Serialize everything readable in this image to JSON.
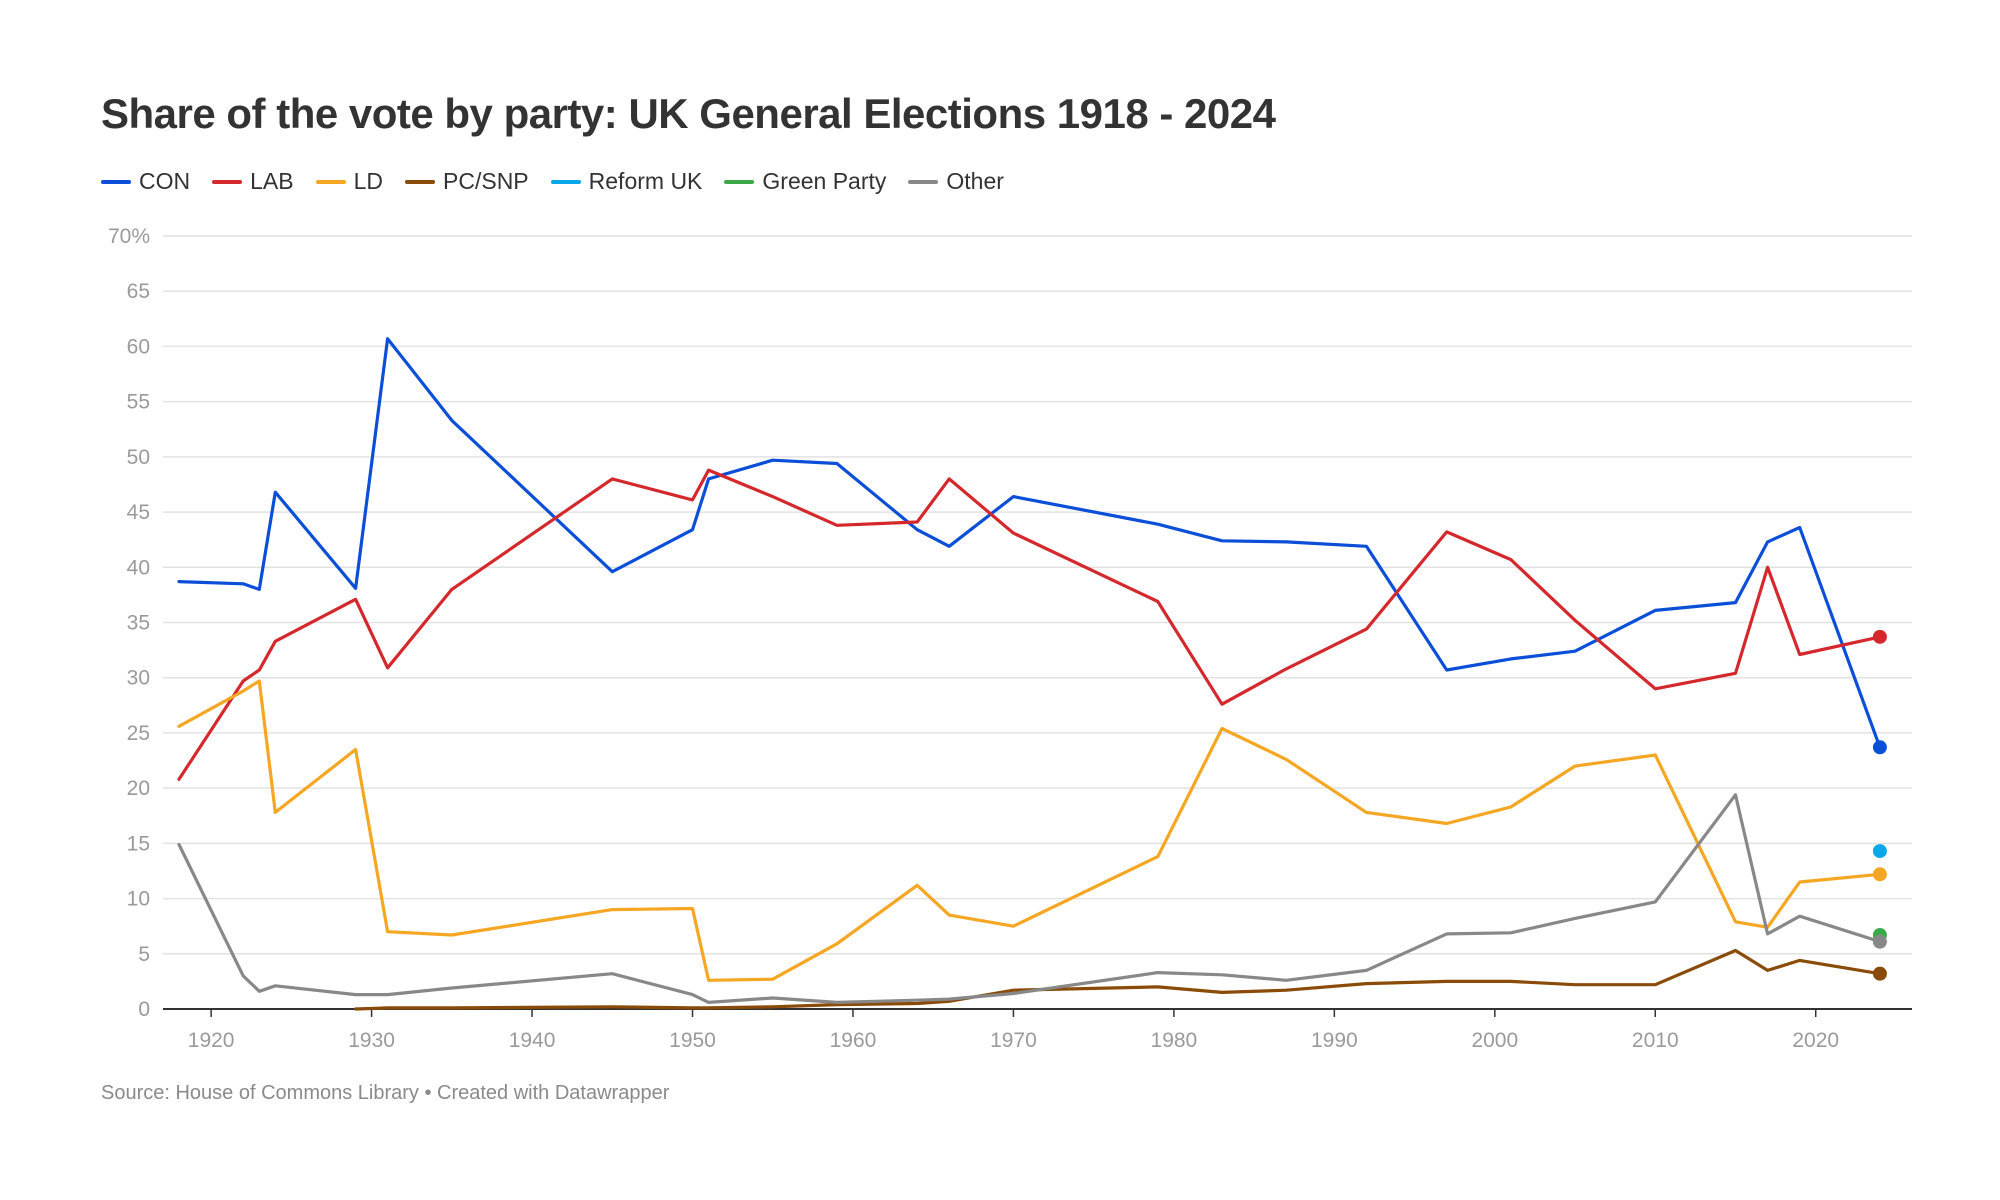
{
  "title": "Share of the vote by party: UK General Elections 1918 - 2024",
  "source": "Source: House of Commons Library • Created with Datawrapper",
  "chart_data": {
    "type": "line",
    "title": "Share of the vote by party: UK General Elections 1918 - 2024",
    "xlabel": "",
    "ylabel": "",
    "xlim": [
      1917,
      2026
    ],
    "ylim": [
      0,
      70
    ],
    "grid": true,
    "legend_position": "top-left",
    "x_ticks": [
      "1920",
      "1930",
      "1940",
      "1950",
      "1960",
      "1970",
      "1980",
      "1990",
      "2000",
      "2010",
      "2020"
    ],
    "x_tick_values": [
      1920,
      1930,
      1940,
      1950,
      1960,
      1970,
      1980,
      1990,
      2000,
      2010,
      2020
    ],
    "y_ticks": [
      "0",
      "5",
      "10",
      "15",
      "20",
      "25",
      "30",
      "35",
      "40",
      "45",
      "50",
      "55",
      "60",
      "65",
      "70%"
    ],
    "y_tick_values": [
      0,
      5,
      10,
      15,
      20,
      25,
      30,
      35,
      40,
      45,
      50,
      55,
      60,
      65,
      70
    ],
    "x": [
      1918,
      1922,
      1923,
      1924,
      1929,
      1931,
      1935,
      1945,
      1950,
      1951,
      1955,
      1959,
      1964,
      1966,
      1970,
      1979,
      1983,
      1987,
      1992,
      1997,
      2001,
      2005,
      2010,
      2015,
      2017,
      2019,
      2024
    ],
    "series": [
      {
        "name": "CON",
        "color": "#0b4fd8",
        "values": [
          38.7,
          38.5,
          38.0,
          46.8,
          38.1,
          60.7,
          53.3,
          39.6,
          43.4,
          48.0,
          49.7,
          49.4,
          43.4,
          41.9,
          46.4,
          43.9,
          42.4,
          42.3,
          41.9,
          30.7,
          31.7,
          32.4,
          36.1,
          36.8,
          42.3,
          43.6,
          23.7
        ]
      },
      {
        "name": "LAB",
        "color": "#d4282c",
        "values": [
          20.8,
          29.7,
          30.7,
          33.3,
          37.1,
          30.9,
          38.0,
          48.0,
          46.1,
          48.8,
          46.4,
          43.8,
          44.1,
          48.0,
          43.1,
          36.9,
          27.6,
          30.8,
          34.4,
          43.2,
          40.7,
          35.2,
          29.0,
          30.4,
          40.0,
          32.1,
          33.7
        ]
      },
      {
        "name": "LD",
        "color": "#f5a623",
        "values": [
          25.6,
          28.8,
          29.7,
          17.8,
          23.5,
          7.0,
          6.7,
          9.0,
          9.1,
          2.6,
          2.7,
          5.9,
          11.2,
          8.5,
          7.5,
          13.8,
          25.4,
          22.6,
          17.8,
          16.8,
          18.3,
          22.0,
          23.0,
          7.9,
          7.4,
          11.5,
          12.2
        ]
      },
      {
        "name": "PC/SNP",
        "color": "#8a4b08",
        "values": [
          null,
          null,
          null,
          null,
          0.0,
          0.1,
          0.1,
          0.2,
          0.1,
          0.1,
          0.2,
          0.4,
          0.5,
          0.7,
          1.7,
          2.0,
          1.5,
          1.7,
          2.3,
          2.5,
          2.5,
          2.2,
          2.2,
          5.3,
          3.5,
          4.4,
          3.2
        ]
      },
      {
        "name": "Reform UK",
        "color": "#0aa8ea",
        "values": [
          null,
          null,
          null,
          null,
          null,
          null,
          null,
          null,
          null,
          null,
          null,
          null,
          null,
          null,
          null,
          null,
          null,
          null,
          null,
          null,
          null,
          null,
          null,
          null,
          null,
          null,
          14.3
        ]
      },
      {
        "name": "Green Party",
        "color": "#3aaa48",
        "values": [
          null,
          null,
          null,
          null,
          null,
          null,
          null,
          null,
          null,
          null,
          null,
          null,
          null,
          null,
          null,
          null,
          null,
          null,
          null,
          null,
          null,
          null,
          null,
          null,
          null,
          null,
          6.7
        ]
      },
      {
        "name": "Other",
        "color": "#888888",
        "values": [
          14.9,
          3.0,
          1.6,
          2.1,
          1.3,
          1.3,
          1.9,
          3.2,
          1.3,
          0.6,
          1.0,
          0.6,
          0.8,
          0.9,
          1.4,
          3.3,
          3.1,
          2.6,
          3.5,
          6.8,
          6.9,
          8.2,
          9.7,
          19.4,
          6.8,
          8.4,
          6.1
        ]
      }
    ]
  }
}
